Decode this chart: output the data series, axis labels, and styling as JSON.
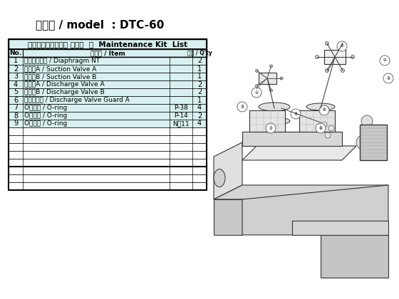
{
  "title": "機種名 / model  : DTC-60",
  "table_header": "メンテナンスキット リスト  ／  Maintenance Kit  List",
  "col_headers": [
    "No.",
    "部品名 / Item",
    "数量 / Q'ty"
  ],
  "rows": [
    [
      "1",
      "ダイアフラム / Diaphragm NT",
      "",
      "2"
    ],
    [
      "2",
      "吸気弁A / Suction Valve A",
      "",
      "1"
    ],
    [
      "3",
      "吸気弁B / Suction Valve B",
      "",
      "1"
    ],
    [
      "4",
      "排気弁A / Discharge Valve A",
      "",
      "2"
    ],
    [
      "5",
      "排気弁B / Discharge Valve B",
      "",
      "2"
    ],
    [
      "6",
      "排気弁押え / Discharge Valve Guard A",
      "",
      "1"
    ],
    [
      "7",
      "Oリング / O-ring",
      "P-38",
      "4"
    ],
    [
      "8",
      "Oリング / O-ring",
      "P-14",
      "2"
    ],
    [
      "9",
      "Oリング / O-ring",
      "N－11",
      "4"
    ],
    [
      "",
      "",
      "",
      ""
    ],
    [
      "",
      "",
      "",
      ""
    ],
    [
      "",
      "",
      "",
      ""
    ],
    [
      "",
      "",
      "",
      ""
    ],
    [
      "",
      "",
      "",
      ""
    ],
    [
      "",
      "",
      "",
      ""
    ],
    [
      "",
      "",
      "",
      ""
    ],
    [
      "",
      "",
      "",
      ""
    ]
  ],
  "bg_color_filled": "#d8f0f0",
  "bg_color_empty": "#ffffff",
  "border_color": "#000000",
  "text_color": "#000000",
  "title_fontsize": 11,
  "header_fontsize": 8,
  "cell_fontsize": 7,
  "fig_bg": "#ffffff"
}
